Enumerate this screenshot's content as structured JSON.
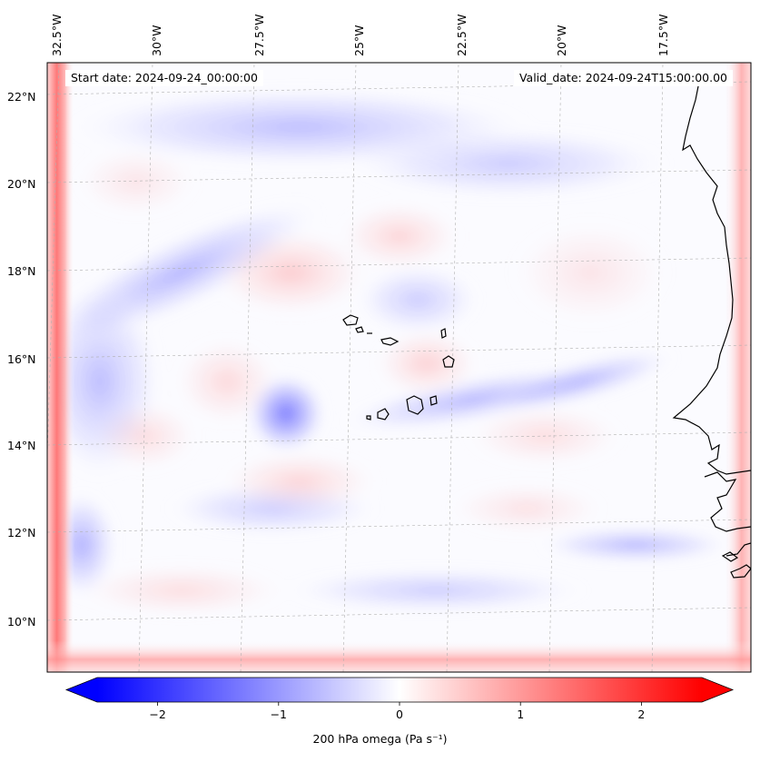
{
  "map": {
    "start_date_label": "Start date: 2024-09-24_00:00:00",
    "valid_date_label": "Valid_date: 2024-09-24T15:00:00.00",
    "lon_labels": [
      "32.5°W",
      "30°W",
      "27.5°W",
      "25°W",
      "22.5°W",
      "20°W",
      "17.5°W"
    ],
    "lat_labels": [
      "22°N",
      "20°N",
      "18°N",
      "16°N",
      "14°N",
      "12°N",
      "10°N"
    ],
    "grid": true
  },
  "colorbar": {
    "label": "200 hPa omega (Pa s⁻¹)",
    "ticks": [
      "−2",
      "−1",
      "0",
      "1",
      "2"
    ],
    "tick_values": [
      -2,
      -1,
      0,
      1,
      2
    ],
    "range": [
      -2.75,
      2.75
    ],
    "extend": "both",
    "colormap": "bwr",
    "min_color": "#0000ff",
    "mid_color": "#ffffff",
    "max_color": "#ff0000"
  },
  "colors": {
    "coastline": "#000000",
    "gridline": "#b0b0b0"
  }
}
